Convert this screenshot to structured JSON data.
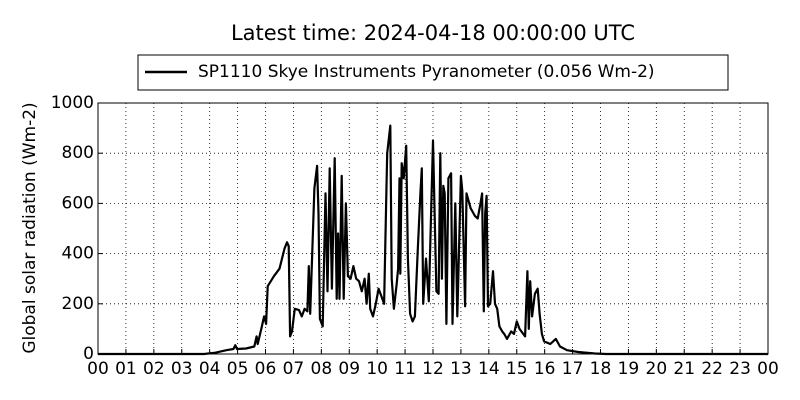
{
  "chart_data": {
    "type": "line",
    "title": "Latest time: 2024-04-18 00:00:00 UTC",
    "y_label": "Global solar radiation (Wm-2)",
    "x": [
      0,
      3.8,
      4.2,
      4.6,
      4.85,
      4.92,
      4.98,
      5.3,
      5.6,
      5.68,
      5.72,
      5.85,
      5.95,
      6.02,
      6.08,
      6.3,
      6.5,
      6.68,
      6.77,
      6.83,
      6.88,
      6.95,
      7.05,
      7.2,
      7.3,
      7.4,
      7.5,
      7.55,
      7.6,
      7.75,
      7.85,
      7.9,
      7.95,
      8.05,
      8.15,
      8.22,
      8.3,
      8.38,
      8.48,
      8.55,
      8.6,
      8.65,
      8.73,
      8.8,
      8.88,
      8.95,
      9.05,
      9.15,
      9.25,
      9.35,
      9.45,
      9.55,
      9.62,
      9.7,
      9.75,
      9.85,
      9.95,
      10.05,
      10.15,
      10.25,
      10.33,
      10.36,
      10.47,
      10.52,
      10.6,
      10.7,
      10.75,
      10.8,
      10.83,
      10.88,
      10.95,
      11.04,
      11.1,
      11.18,
      11.27,
      11.35,
      11.45,
      11.55,
      11.6,
      11.65,
      11.75,
      11.85,
      12.0,
      12.05,
      12.12,
      12.2,
      12.26,
      12.32,
      12.37,
      12.42,
      12.48,
      12.55,
      12.65,
      12.7,
      12.8,
      12.87,
      13.0,
      13.05,
      13.15,
      13.2,
      13.35,
      13.5,
      13.6,
      13.7,
      13.76,
      13.82,
      13.87,
      13.92,
      13.97,
      14.05,
      14.15,
      14.22,
      14.3,
      14.38,
      14.48,
      14.55,
      14.65,
      14.8,
      14.9,
      15.0,
      15.1,
      15.3,
      15.38,
      15.43,
      15.48,
      15.55,
      15.65,
      15.75,
      15.82,
      15.9,
      15.98,
      16.2,
      16.4,
      16.55,
      16.8,
      17.2,
      17.8,
      18.2,
      24
    ],
    "series": [
      {
        "name": "SP1110 Skye Instruments Pyranometer (0.056 Wm-2)",
        "color": "#000000",
        "values": [
          0,
          0,
          5,
          15,
          20,
          35,
          20,
          22,
          30,
          70,
          40,
          100,
          150,
          120,
          270,
          310,
          340,
          420,
          445,
          430,
          70,
          90,
          180,
          175,
          150,
          180,
          170,
          350,
          160,
          660,
          750,
          560,
          140,
          110,
          640,
          250,
          740,
          260,
          780,
          220,
          480,
          220,
          710,
          220,
          600,
          310,
          300,
          350,
          300,
          290,
          250,
          300,
          200,
          320,
          180,
          150,
          200,
          260,
          230,
          200,
          650,
          800,
          910,
          300,
          180,
          280,
          340,
          700,
          320,
          760,
          700,
          830,
          380,
          160,
          130,
          150,
          400,
          640,
          740,
          200,
          380,
          210,
          850,
          600,
          250,
          240,
          800,
          300,
          670,
          640,
          120,
          700,
          720,
          120,
          600,
          150,
          710,
          650,
          190,
          640,
          580,
          550,
          540,
          600,
          640,
          170,
          560,
          630,
          190,
          200,
          330,
          200,
          180,
          110,
          90,
          80,
          60,
          90,
          80,
          130,
          100,
          70,
          330,
          100,
          290,
          150,
          240,
          260,
          160,
          80,
          50,
          40,
          60,
          30,
          15,
          8,
          2,
          0,
          0
        ]
      }
    ],
    "xlim": [
      0,
      24
    ],
    "xticks": [
      {
        "value": 0,
        "label": "00"
      },
      {
        "value": 1,
        "label": "01"
      },
      {
        "value": 2,
        "label": "02"
      },
      {
        "value": 3,
        "label": "03"
      },
      {
        "value": 4,
        "label": "04"
      },
      {
        "value": 5,
        "label": "05"
      },
      {
        "value": 6,
        "label": "06"
      },
      {
        "value": 7,
        "label": "07"
      },
      {
        "value": 8,
        "label": "08"
      },
      {
        "value": 9,
        "label": "09"
      },
      {
        "value": 10,
        "label": "10"
      },
      {
        "value": 11,
        "label": "11"
      },
      {
        "value": 12,
        "label": "12"
      },
      {
        "value": 13,
        "label": "13"
      },
      {
        "value": 14,
        "label": "14"
      },
      {
        "value": 15,
        "label": "15"
      },
      {
        "value": 16,
        "label": "16"
      },
      {
        "value": 17,
        "label": "17"
      },
      {
        "value": 18,
        "label": "18"
      },
      {
        "value": 19,
        "label": "19"
      },
      {
        "value": 20,
        "label": "20"
      },
      {
        "value": 21,
        "label": "21"
      },
      {
        "value": 22,
        "label": "22"
      },
      {
        "value": 23,
        "label": "23"
      },
      {
        "value": 24,
        "label": "00"
      }
    ],
    "ylim": [
      0,
      1000
    ],
    "yticks": [
      0,
      200,
      400,
      600,
      800,
      1000
    ],
    "grid": true,
    "legend": "top"
  }
}
